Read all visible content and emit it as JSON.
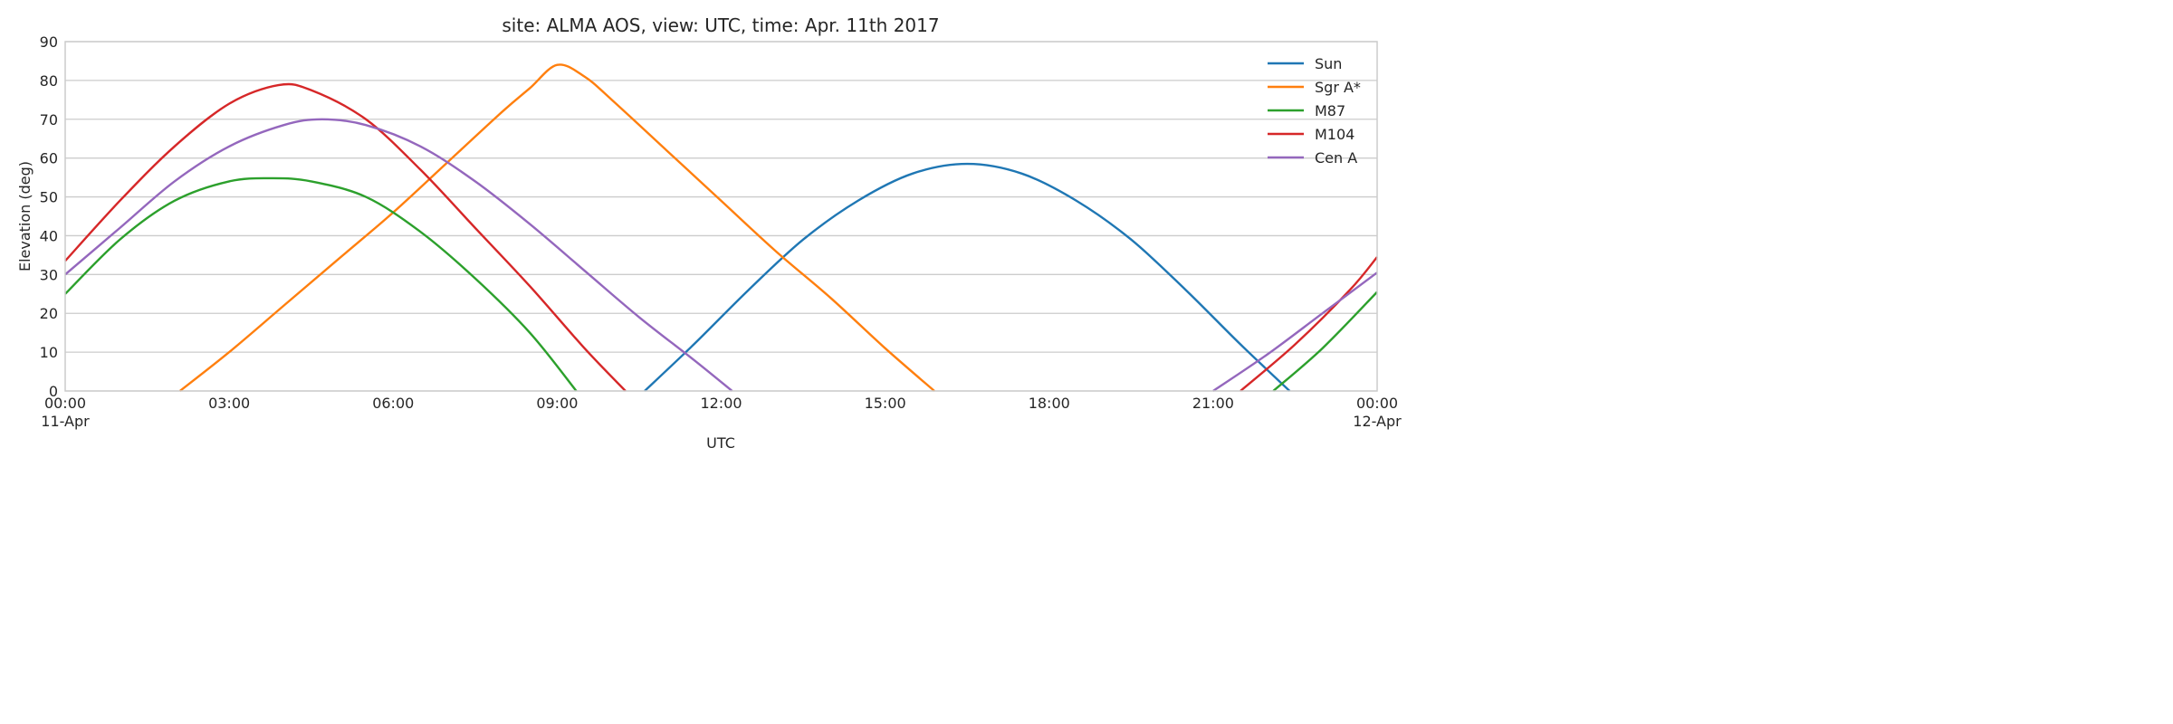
{
  "chart_data": {
    "type": "line",
    "title": "site: ALMA AOS, view: UTC, time: Apr. 11th 2017",
    "xlabel": "UTC",
    "ylabel": "Elevation (deg)",
    "xlim": [
      0,
      24
    ],
    "ylim": [
      0,
      90
    ],
    "grid": true,
    "legend_position": "top-right",
    "x_ticks": [
      {
        "value": 0,
        "label": "00:00",
        "sublabel": "11-Apr"
      },
      {
        "value": 3,
        "label": "03:00",
        "sublabel": ""
      },
      {
        "value": 6,
        "label": "06:00",
        "sublabel": ""
      },
      {
        "value": 9,
        "label": "09:00",
        "sublabel": ""
      },
      {
        "value": 12,
        "label": "12:00",
        "sublabel": ""
      },
      {
        "value": 15,
        "label": "15:00",
        "sublabel": ""
      },
      {
        "value": 18,
        "label": "18:00",
        "sublabel": ""
      },
      {
        "value": 21,
        "label": "21:00",
        "sublabel": ""
      },
      {
        "value": 24,
        "label": "00:00",
        "sublabel": "12-Apr"
      }
    ],
    "y_ticks": [
      0,
      10,
      20,
      30,
      40,
      50,
      60,
      70,
      80,
      90
    ],
    "series": [
      {
        "name": "Sun",
        "color": "#1f77b4",
        "x": [
          10.6,
          11.5,
          12.5,
          13.5,
          14.5,
          15.5,
          16.5,
          17.5,
          18.5,
          19.5,
          20.5,
          21.5,
          22.4
        ],
        "y": [
          0,
          12,
          26,
          39,
          49,
          56,
          58.5,
          56,
          49,
          39,
          26,
          12,
          0
        ]
      },
      {
        "name": "Sgr A*",
        "color": "#ff7f0e",
        "x": [
          2.1,
          3,
          4,
          5,
          6,
          7,
          8,
          8.5,
          9,
          9.5,
          10,
          11,
          12,
          13,
          14,
          15,
          15.9
        ],
        "y": [
          0,
          10,
          22,
          34,
          46,
          59,
          72,
          78,
          84,
          81,
          75,
          62,
          49,
          36,
          24,
          11,
          0
        ],
        "extra_points_note": ""
      },
      {
        "name": "M87",
        "color": "#2ca02c",
        "x": [
          0,
          1,
          2,
          3,
          3.8,
          4.5,
          5.5,
          6.5,
          7.5,
          8.5,
          9.35
        ],
        "y": [
          25,
          39,
          49,
          54,
          54.8,
          54,
          50,
          41,
          29,
          15,
          0
        ],
        "x_late": [
          22.1,
          23,
          24
        ],
        "y_late": [
          0,
          11,
          25.5
        ]
      },
      {
        "name": "M104",
        "color": "#d62728",
        "x": [
          0,
          1,
          2,
          3,
          3.9,
          4.5,
          5.5,
          6.5,
          7.5,
          8.5,
          9.5,
          10.25
        ],
        "y": [
          33.5,
          49,
          63,
          74,
          78.8,
          77.5,
          70,
          57,
          42,
          27,
          11,
          0
        ],
        "x_late": [
          21.5,
          22.5,
          23.5,
          24
        ],
        "y_late": [
          0,
          12,
          26,
          34.5
        ]
      },
      {
        "name": "Cen A",
        "color": "#9467bd",
        "x": [
          0,
          1,
          2,
          3,
          4,
          4.7,
          5.5,
          6.5,
          7.5,
          8.5,
          9.5,
          10.5,
          11.5,
          12.2
        ],
        "y": [
          30,
          42,
          54,
          63,
          68.5,
          70,
          68.5,
          63,
          54,
          43,
          31,
          19,
          8,
          0
        ],
        "x_late": [
          21,
          22,
          23,
          24
        ],
        "y_late": [
          0,
          9.5,
          20,
          30.5
        ]
      }
    ]
  }
}
